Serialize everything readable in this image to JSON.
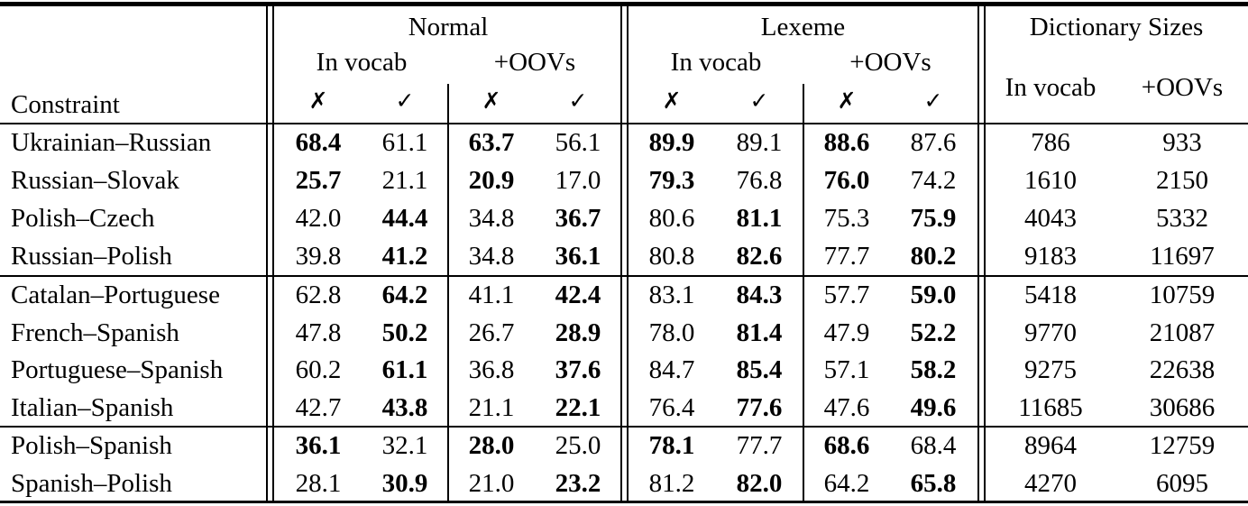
{
  "table": {
    "corner_label": "Constraint",
    "symbols": {
      "cross": "✗",
      "check": "✓"
    },
    "groups": [
      {
        "label": "Normal",
        "sub": [
          "In vocab",
          "+OOVs"
        ]
      },
      {
        "label": "Lexeme",
        "sub": [
          "In vocab",
          "+OOVs"
        ]
      },
      {
        "label": "Dictionary Sizes",
        "sub": [
          "In vocab",
          "+OOVs"
        ]
      }
    ],
    "row_groups": [
      {
        "rows": [
          {
            "constraint": "Ukrainian–Russian",
            "values": [
              "68.4",
              "61.1",
              "63.7",
              "56.1",
              "89.9",
              "89.1",
              "88.6",
              "87.6"
            ],
            "bold": [
              0,
              2,
              4,
              6
            ],
            "dict": [
              "786",
              "933"
            ]
          },
          {
            "constraint": "Russian–Slovak",
            "values": [
              "25.7",
              "21.1",
              "20.9",
              "17.0",
              "79.3",
              "76.8",
              "76.0",
              "74.2"
            ],
            "bold": [
              0,
              2,
              4,
              6
            ],
            "dict": [
              "1610",
              "2150"
            ]
          },
          {
            "constraint": "Polish–Czech",
            "values": [
              "42.0",
              "44.4",
              "34.8",
              "36.7",
              "80.6",
              "81.1",
              "75.3",
              "75.9"
            ],
            "bold": [
              1,
              3,
              5,
              7
            ],
            "dict": [
              "4043",
              "5332"
            ]
          },
          {
            "constraint": "Russian–Polish",
            "values": [
              "39.8",
              "41.2",
              "34.8",
              "36.1",
              "80.8",
              "82.6",
              "77.7",
              "80.2"
            ],
            "bold": [
              1,
              3,
              5,
              7
            ],
            "dict": [
              "9183",
              "11697"
            ]
          }
        ]
      },
      {
        "rows": [
          {
            "constraint": "Catalan–Portuguese",
            "values": [
              "62.8",
              "64.2",
              "41.1",
              "42.4",
              "83.1",
              "84.3",
              "57.7",
              "59.0"
            ],
            "bold": [
              1,
              3,
              5,
              7
            ],
            "dict": [
              "5418",
              "10759"
            ]
          },
          {
            "constraint": "French–Spanish",
            "values": [
              "47.8",
              "50.2",
              "26.7",
              "28.9",
              "78.0",
              "81.4",
              "47.9",
              "52.2"
            ],
            "bold": [
              1,
              3,
              5,
              7
            ],
            "dict": [
              "9770",
              "21087"
            ]
          },
          {
            "constraint": "Portuguese–Spanish",
            "values": [
              "60.2",
              "61.1",
              "36.8",
              "37.6",
              "84.7",
              "85.4",
              "57.1",
              "58.2"
            ],
            "bold": [
              1,
              3,
              5,
              7
            ],
            "dict": [
              "9275",
              "22638"
            ]
          },
          {
            "constraint": "Italian–Spanish",
            "values": [
              "42.7",
              "43.8",
              "21.1",
              "22.1",
              "76.4",
              "77.6",
              "47.6",
              "49.6"
            ],
            "bold": [
              1,
              3,
              5,
              7
            ],
            "dict": [
              "11685",
              "30686"
            ]
          }
        ]
      },
      {
        "rows": [
          {
            "constraint": "Polish–Spanish",
            "values": [
              "36.1",
              "32.1",
              "28.0",
              "25.0",
              "78.1",
              "77.7",
              "68.6",
              "68.4"
            ],
            "bold": [
              0,
              2,
              4,
              6
            ],
            "dict": [
              "8964",
              "12759"
            ]
          },
          {
            "constraint": "Spanish–Polish",
            "values": [
              "28.1",
              "30.9",
              "21.0",
              "23.2",
              "81.2",
              "82.0",
              "64.2",
              "65.8"
            ],
            "bold": [
              1,
              3,
              5,
              7
            ],
            "dict": [
              "4270",
              "6095"
            ]
          }
        ]
      }
    ]
  }
}
